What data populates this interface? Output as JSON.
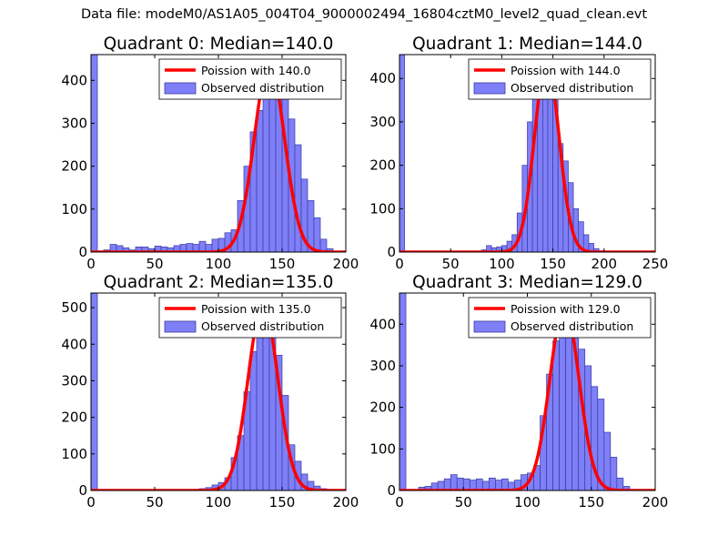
{
  "figure": {
    "suptitle": "Data file: modeM0/AS1A05_004T04_9000002494_16804cztM0_level2_quad_clean.evt"
  },
  "colors": {
    "bar_fill": "#7f7ff7",
    "bar_edge": "#3a3aa0",
    "poisson_line": "#ff0000",
    "axes": "#000000",
    "background": "#ffffff"
  },
  "chart_data": [
    {
      "type": "bar",
      "title": "Quadrant 0: Median=140.0",
      "xlim": [
        0,
        200
      ],
      "ylim": [
        0,
        460
      ],
      "xticks": [
        0,
        50,
        100,
        150,
        200
      ],
      "yticks": [
        0,
        100,
        200,
        300,
        400
      ],
      "grid": false,
      "legend_position": "top-right",
      "bin_width": 5,
      "series": [
        {
          "name": "Observed distribution",
          "x": [
            0,
            5,
            10,
            15,
            20,
            25,
            30,
            35,
            40,
            45,
            50,
            55,
            60,
            65,
            70,
            75,
            80,
            85,
            90,
            95,
            100,
            105,
            110,
            115,
            120,
            125,
            130,
            135,
            140,
            145,
            150,
            155,
            160,
            165,
            170,
            175,
            180,
            185,
            190
          ],
          "values": [
            460,
            3,
            5,
            18,
            15,
            10,
            5,
            12,
            12,
            8,
            14,
            12,
            10,
            15,
            18,
            20,
            18,
            25,
            18,
            30,
            32,
            45,
            52,
            120,
            200,
            280,
            330,
            410,
            430,
            400,
            390,
            310,
            250,
            170,
            120,
            80,
            30,
            8,
            2
          ]
        },
        {
          "name": "Poission with 140.0",
          "mean": 140.0,
          "peak": 440
        }
      ]
    },
    {
      "type": "bar",
      "title": "Quadrant 1: Median=144.0",
      "xlim": [
        0,
        250
      ],
      "ylim": [
        0,
        455
      ],
      "xticks": [
        0,
        50,
        100,
        150,
        200,
        250
      ],
      "yticks": [
        0,
        100,
        200,
        300,
        400
      ],
      "grid": false,
      "legend_position": "top-right",
      "bin_width": 5,
      "series": [
        {
          "name": "Observed distribution",
          "x": [
            0,
            80,
            85,
            90,
            95,
            100,
            105,
            110,
            115,
            120,
            125,
            130,
            135,
            140,
            145,
            150,
            155,
            160,
            165,
            170,
            175,
            180,
            185,
            190,
            195
          ],
          "values": [
            455,
            5,
            15,
            10,
            12,
            15,
            25,
            40,
            90,
            200,
            300,
            380,
            420,
            420,
            410,
            350,
            250,
            210,
            160,
            100,
            70,
            40,
            20,
            8,
            3
          ]
        },
        {
          "name": "Poission with 144.0",
          "mean": 144.0,
          "peak": 440
        }
      ]
    },
    {
      "type": "bar",
      "title": "Quadrant 2: Median=135.0",
      "xlim": [
        0,
        200
      ],
      "ylim": [
        0,
        540
      ],
      "xticks": [
        0,
        50,
        100,
        150,
        200
      ],
      "yticks": [
        0,
        100,
        200,
        300,
        400,
        500
      ],
      "grid": false,
      "legend_position": "top-right",
      "bin_width": 5,
      "series": [
        {
          "name": "Observed distribution",
          "x": [
            0,
            75,
            80,
            85,
            90,
            95,
            100,
            105,
            110,
            115,
            120,
            125,
            130,
            135,
            140,
            145,
            150,
            155,
            160,
            165,
            170,
            175,
            180,
            185
          ],
          "values": [
            540,
            2,
            3,
            5,
            8,
            15,
            22,
            35,
            90,
            150,
            270,
            380,
            480,
            490,
            460,
            370,
            260,
            125,
            80,
            45,
            25,
            12,
            5,
            2
          ]
        },
        {
          "name": "Poission with 135.0",
          "mean": 135.0,
          "peak": 510
        }
      ]
    },
    {
      "type": "bar",
      "title": "Quadrant 3: Median=129.0",
      "xlim": [
        0,
        200
      ],
      "ylim": [
        0,
        475
      ],
      "xticks": [
        0,
        50,
        100,
        150,
        200
      ],
      "yticks": [
        0,
        100,
        200,
        300,
        400
      ],
      "grid": false,
      "legend_position": "top-right",
      "bin_width": 5,
      "series": [
        {
          "name": "Observed distribution",
          "x": [
            0,
            15,
            20,
            25,
            30,
            35,
            40,
            45,
            50,
            55,
            60,
            65,
            70,
            75,
            80,
            85,
            90,
            95,
            100,
            105,
            110,
            115,
            120,
            125,
            130,
            135,
            140,
            145,
            150,
            155,
            160,
            165,
            170,
            175
          ],
          "values": [
            475,
            8,
            10,
            18,
            22,
            28,
            38,
            30,
            28,
            25,
            28,
            22,
            30,
            25,
            28,
            20,
            25,
            38,
            42,
            60,
            180,
            280,
            360,
            440,
            410,
            420,
            340,
            300,
            250,
            220,
            140,
            80,
            30,
            10
          ]
        },
        {
          "name": "Poission with 129.0",
          "mean": 129.0,
          "peak": 445
        }
      ]
    }
  ]
}
